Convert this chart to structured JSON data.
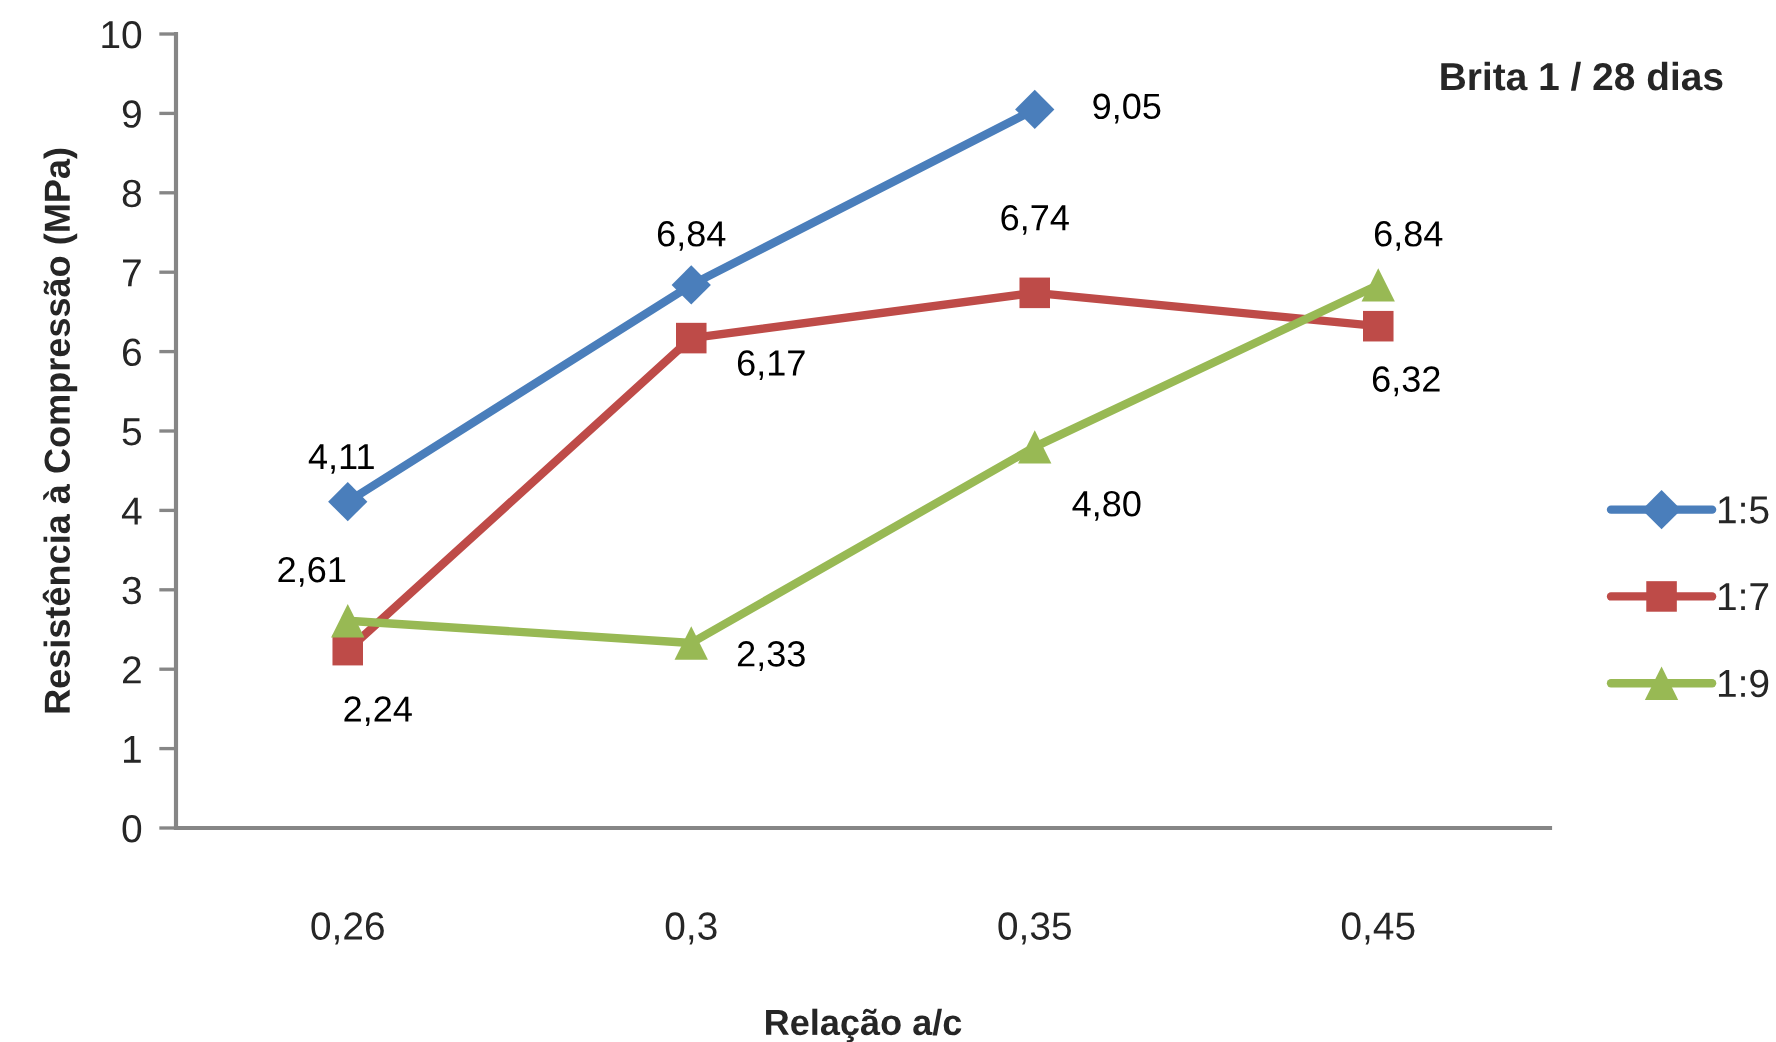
{
  "chart_data": {
    "type": "line",
    "title": "Brita 1 / 28 dias",
    "xlabel": "Relação a/c",
    "ylabel": "Resistência à Compressão (MPa)",
    "categories": [
      "0,26",
      "0,3",
      "0,35",
      "0,45"
    ],
    "series": [
      {
        "name": "1:5",
        "color": "#4a7ebb",
        "marker": "diamond",
        "values": [
          4.11,
          6.84,
          9.05,
          null
        ],
        "value_labels": [
          "4,11",
          "6,84",
          "9,05",
          null
        ]
      },
      {
        "name": "1:7",
        "color": "#be4b48",
        "marker": "square",
        "values": [
          2.24,
          6.17,
          6.74,
          6.32
        ],
        "value_labels": [
          "2,24",
          "6,17",
          "6,74",
          "6,32"
        ]
      },
      {
        "name": "1:9",
        "color": "#98b954",
        "marker": "triangle",
        "values": [
          2.61,
          2.33,
          4.8,
          6.84
        ],
        "value_labels": [
          "2,61",
          "2,33",
          "4,80",
          "6,84"
        ]
      }
    ],
    "ylim": [
      0,
      10
    ],
    "yticks": [
      0,
      1,
      2,
      3,
      4,
      5,
      6,
      7,
      8,
      9,
      10
    ],
    "legend": "right"
  }
}
